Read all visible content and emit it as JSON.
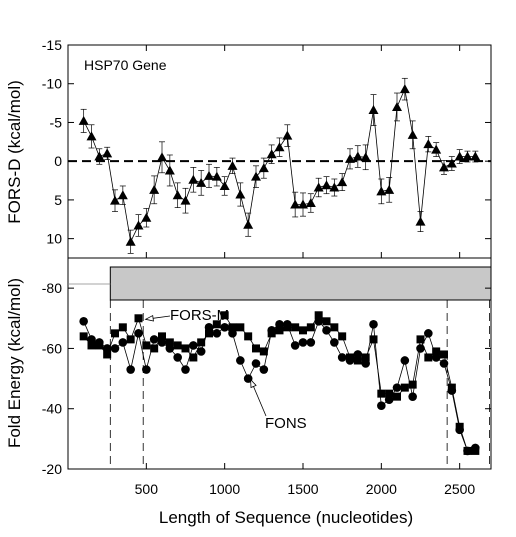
{
  "chart_data": [
    {
      "type": "line",
      "panel": "top",
      "annotation": "HSP70 Gene",
      "ylabel": "FORS-D (kcal/mol)",
      "ylim": [
        12.5,
        -15
      ],
      "yticks": [
        -15,
        -10,
        -5,
        0,
        5,
        10
      ],
      "xlim": [
        0,
        2700
      ],
      "reference_line": 0,
      "series": [
        {
          "marker": "triangle",
          "x": [
            100,
            150,
            200,
            250,
            300,
            350,
            400,
            450,
            500,
            550,
            600,
            650,
            700,
            750,
            800,
            850,
            900,
            950,
            1000,
            1050,
            1100,
            1150,
            1200,
            1250,
            1300,
            1350,
            1400,
            1450,
            1500,
            1550,
            1600,
            1650,
            1700,
            1750,
            1800,
            1850,
            1900,
            1950,
            2000,
            2050,
            2100,
            2150,
            2200,
            2250,
            2300,
            2350,
            2400,
            2450,
            2500,
            2550,
            2600
          ],
          "y": [
            -5.2,
            -3.2,
            -0.6,
            -1.0,
            5.1,
            4.4,
            10.4,
            8.3,
            7.3,
            3.7,
            -0.5,
            1.2,
            4.4,
            5.1,
            2.4,
            2.8,
            1.9,
            2.0,
            3.2,
            0.6,
            4.3,
            8.2,
            2.0,
            0.9,
            -0.9,
            -1.8,
            -3.3,
            5.6,
            5.6,
            5.4,
            3.4,
            3.1,
            3.4,
            2.7,
            -0.3,
            -0.6,
            -0.5,
            -6.6,
            3.9,
            3.7,
            -7.0,
            -9.3,
            -3.4,
            7.8,
            -2.2,
            -1.5,
            0.8,
            0.3,
            -0.6,
            -0.6,
            -0.6
          ],
          "err": [
            1.5,
            1.5,
            1.0,
            0.8,
            1.4,
            1.2,
            1.5,
            1.4,
            1.2,
            1.8,
            2.0,
            2.0,
            1.6,
            1.6,
            1.6,
            1.6,
            1.5,
            1.2,
            1.2,
            1.0,
            1.5,
            1.5,
            1.4,
            1.3,
            1.2,
            1.2,
            1.4,
            1.6,
            1.5,
            1.2,
            1.2,
            1.1,
            1.1,
            1.1,
            1.3,
            1.4,
            1.6,
            2.0,
            1.6,
            1.6,
            1.8,
            1.4,
            1.8,
            1.3,
            1.0,
            0.9,
            0.9,
            0.9,
            0.9,
            0.7,
            0.7
          ]
        }
      ]
    },
    {
      "type": "line",
      "panel": "bottom",
      "xlabel": "Length of Sequence (nucleotides)",
      "ylabel": "Fold Energy (kcal/mol)",
      "ylim": [
        -20,
        -90
      ],
      "yticks": [
        -80,
        -60,
        -40,
        -20
      ],
      "xlim": [
        0,
        2700
      ],
      "xticks": [
        500,
        1000,
        1500,
        2000,
        2500
      ],
      "gene_bar": {
        "x_start": 270,
        "x_end": 2700
      },
      "vertical_markers": [
        270,
        480,
        2420,
        2690
      ],
      "series": [
        {
          "name": "FORS-M",
          "marker": "square",
          "x": [
            100,
            150,
            200,
            250,
            300,
            350,
            400,
            450,
            500,
            550,
            600,
            650,
            700,
            750,
            800,
            850,
            900,
            950,
            1000,
            1050,
            1100,
            1150,
            1200,
            1250,
            1300,
            1350,
            1400,
            1450,
            1500,
            1550,
            1600,
            1650,
            1700,
            1750,
            1800,
            1850,
            1900,
            1950,
            2000,
            2050,
            2100,
            2150,
            2200,
            2250,
            2300,
            2350,
            2400,
            2450,
            2500,
            2550,
            2600
          ],
          "y": [
            -64,
            -61,
            -61,
            -58,
            -65,
            -67,
            -63,
            -70,
            -61,
            -60,
            -64,
            -62,
            -61,
            -60,
            -57,
            -62,
            -65,
            -68,
            -71,
            -67,
            -67,
            -64,
            -60,
            -59,
            -65,
            -66,
            -67,
            -67,
            -66,
            -67,
            -71,
            -69,
            -67,
            -64,
            -57,
            -56,
            -57,
            -63,
            -45,
            -45,
            -44,
            -47,
            -48,
            -63,
            -57,
            -59,
            -58,
            -47,
            -34,
            -26,
            -26
          ]
        },
        {
          "name": "FONS",
          "marker": "circle",
          "x": [
            100,
            150,
            200,
            250,
            300,
            350,
            400,
            450,
            500,
            550,
            600,
            650,
            700,
            750,
            800,
            850,
            900,
            950,
            1000,
            1050,
            1100,
            1150,
            1200,
            1250,
            1300,
            1350,
            1400,
            1450,
            1500,
            1550,
            1600,
            1650,
            1700,
            1750,
            1800,
            1850,
            1900,
            1950,
            2000,
            2050,
            2100,
            2150,
            2200,
            2250,
            2300,
            2350,
            2400,
            2450,
            2500,
            2550,
            2600
          ],
          "y": [
            -69,
            -63,
            -62,
            -60,
            -60,
            -62,
            -53,
            -65,
            -53,
            -63,
            -62,
            -60,
            -57,
            -53,
            -61,
            -59,
            -67,
            -65,
            -67,
            -65,
            -56,
            -50,
            -55,
            -53,
            -66,
            -68,
            -68,
            -61,
            -62,
            -62,
            -69,
            -66,
            -62,
            -57,
            -56,
            -58,
            -55,
            -68,
            -41,
            -43,
            -47,
            -56,
            -44,
            -60,
            -65,
            -57,
            -55,
            -46,
            -33,
            -26,
            -27
          ]
        }
      ],
      "annotations": [
        {
          "text": "FORS-M",
          "points_to": [
            470,
            -69
          ]
        },
        {
          "text": "FONS",
          "points_to": [
            1140,
            -51
          ]
        }
      ]
    }
  ]
}
